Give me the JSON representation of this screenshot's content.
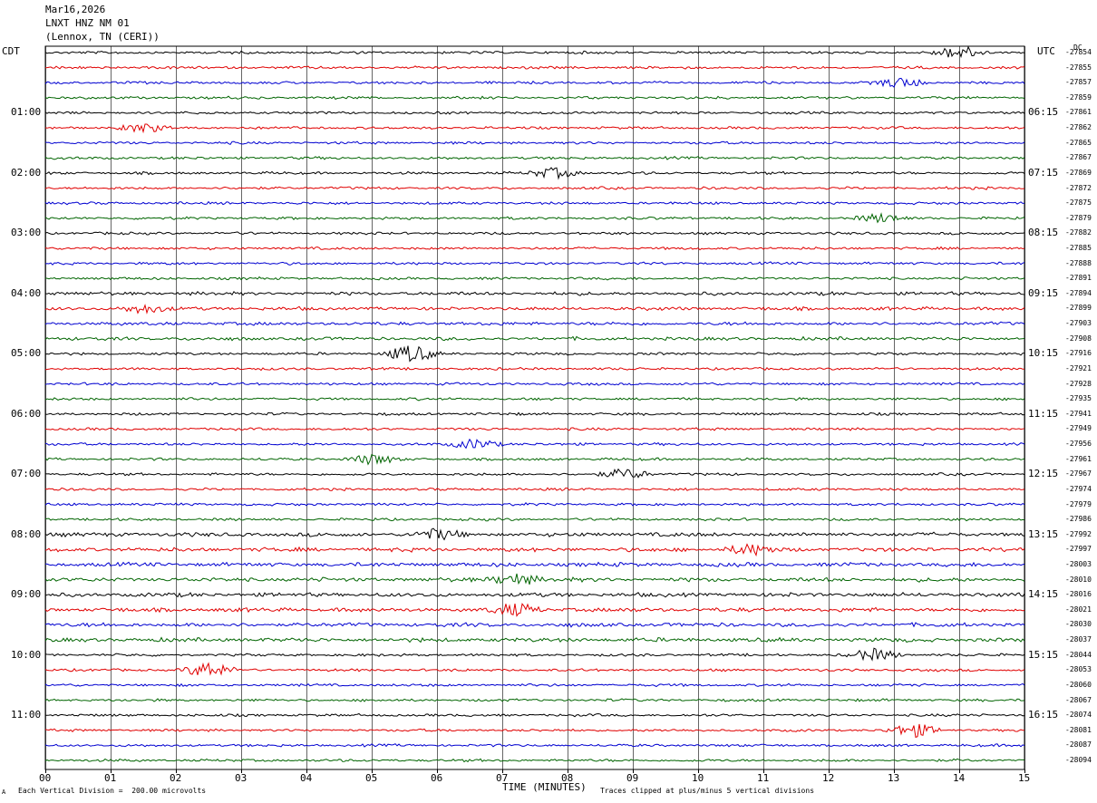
{
  "header": {
    "date": "Mar16,2026",
    "station": "LNXT HNZ NM 01",
    "location": "(Lennox, TN (CERI))"
  },
  "axis_labels": {
    "left_timezone": "CDT",
    "right_timezone": "UTC",
    "right_corner_tag": "DC",
    "xlabel": "TIME (MINUTES)"
  },
  "footer": {
    "scale_note": "Each Vertical Division =  200.00 microvolts",
    "clip_note": "Traces clipped at plus/minus 5 vertical divisions",
    "corner_mark": "A"
  },
  "colors": {
    "trace_cycle": [
      "#000000",
      "#e00000",
      "#0000d0",
      "#006400"
    ],
    "grid": "#000000",
    "background": "#ffffff"
  },
  "chart_data": {
    "type": "line",
    "title": "",
    "xlabel": "TIME (MINUTES)",
    "xlim": [
      0,
      15
    ],
    "x_ticks": [
      "00",
      "01",
      "02",
      "03",
      "04",
      "05",
      "06",
      "07",
      "08",
      "09",
      "10",
      "11",
      "12",
      "13",
      "14",
      "15"
    ],
    "grid": true,
    "rows_per_hour": 4,
    "minutes_per_row": 15,
    "left_hour_labels": [
      "01:00",
      "02:00",
      "03:00",
      "04:00",
      "05:00",
      "06:00",
      "07:00",
      "08:00",
      "09:00",
      "10:00",
      "11:00"
    ],
    "right_hour_labels": [
      "06:15",
      "07:15",
      "08:15",
      "09:15",
      "10:15",
      "11:15",
      "12:15",
      "13:15",
      "14:15",
      "15:15",
      "16:15"
    ],
    "dc_offsets": [
      -27854,
      -27855,
      -27857,
      -27859,
      -27861,
      -27862,
      -27865,
      -27867,
      -27869,
      -27872,
      -27875,
      -27879,
      -27882,
      -27885,
      -27888,
      -27891,
      -27894,
      -27899,
      -27903,
      -27908,
      -27916,
      -27921,
      -27928,
      -27935,
      -27941,
      -27949,
      -27956,
      -27961,
      -27967,
      -27974,
      -27979,
      -27986,
      -27992,
      -27997,
      -28003,
      -28010,
      -28016,
      -28021,
      -28030,
      -28037,
      -28044,
      -28053,
      -28060,
      -28067,
      -28074,
      -28081,
      -28087,
      -28094
    ],
    "events": [
      {
        "row": 0,
        "minute": 14.0,
        "amp": 0.8
      },
      {
        "row": 2,
        "minute": 13.1,
        "amp": 0.6
      },
      {
        "row": 5,
        "minute": 1.5,
        "amp": 0.5
      },
      {
        "row": 8,
        "minute": 7.8,
        "amp": 0.6
      },
      {
        "row": 11,
        "minute": 12.8,
        "amp": 0.5
      },
      {
        "row": 17,
        "minute": 1.5,
        "amp": 0.5
      },
      {
        "row": 20,
        "minute": 5.6,
        "amp": 1.0
      },
      {
        "row": 26,
        "minute": 6.6,
        "amp": 0.6
      },
      {
        "row": 27,
        "minute": 5.0,
        "amp": 0.6
      },
      {
        "row": 28,
        "minute": 8.9,
        "amp": 0.6
      },
      {
        "row": 32,
        "minute": 6.0,
        "amp": 0.6
      },
      {
        "row": 33,
        "minute": 10.8,
        "amp": 0.6
      },
      {
        "row": 35,
        "minute": 7.2,
        "amp": 0.7
      },
      {
        "row": 37,
        "minute": 7.2,
        "amp": 0.7
      },
      {
        "row": 41,
        "minute": 2.5,
        "amp": 0.9
      },
      {
        "row": 40,
        "minute": 12.7,
        "amp": 0.7
      },
      {
        "row": 45,
        "minute": 13.3,
        "amp": 0.8
      }
    ]
  }
}
